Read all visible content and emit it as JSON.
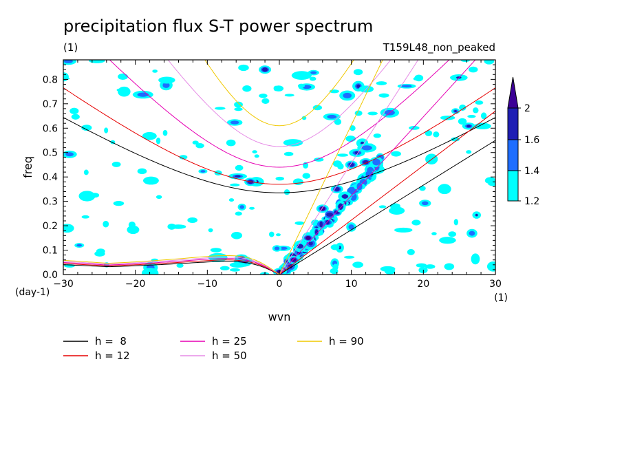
{
  "chart_data": {
    "type": "heatmap",
    "title": "precipitation flux S-T power spectrum",
    "subtitle_left": "(1)",
    "subtitle_right": "T159L48_non_peaked",
    "xlabel": "wvn",
    "ylabel": "freq",
    "x_unit": "(1)",
    "y_unit": "(day-1)",
    "xlim": [
      -30,
      30
    ],
    "ylim": [
      0.0,
      0.88
    ],
    "xticks": [
      -30,
      -20,
      -10,
      0,
      10,
      20,
      30
    ],
    "yticks": [
      0.0,
      0.1,
      0.2,
      0.3,
      0.4,
      0.5,
      0.6,
      0.7,
      0.8
    ],
    "colorbar": {
      "levels": [
        1.2,
        1.4,
        1.6,
        2
      ],
      "labels": [
        "1.2",
        "1.4",
        "1.6",
        "2"
      ],
      "colors": [
        "#00ffff",
        "#1e6eff",
        "#1e1eb4",
        "#3c0096"
      ]
    },
    "grid": false,
    "legend_placement": "bottom-left",
    "dispersion_curves": [
      {
        "label": "h =  8",
        "h": 8,
        "color": "#000000"
      },
      {
        "label": "h = 12",
        "h": 12,
        "color": "#e60000"
      },
      {
        "label": "h = 25",
        "h": 25,
        "color": "#e600b4"
      },
      {
        "label": "h = 50",
        "h": 50,
        "color": "#e68ce6"
      },
      {
        "label": "h = 90",
        "h": 90,
        "color": "#f0c800"
      }
    ],
    "kelvin_waves": [
      {
        "x": [
          0,
          30
        ],
        "y": [
          0,
          0.55
        ],
        "h": 8
      },
      {
        "x": [
          0,
          30
        ],
        "y": [
          0,
          0.67
        ],
        "h": 12
      },
      {
        "x": [
          0,
          30
        ],
        "y": [
          0,
          0.97
        ],
        "h": 25
      },
      {
        "x": [
          0,
          30
        ],
        "y": [
          0,
          1.37
        ],
        "h": 50
      },
      {
        "x": [
          0,
          30
        ],
        "y": [
          0,
          1.84
        ],
        "h": 90
      }
    ],
    "inertia_gravity_minimum": [
      {
        "h": 8,
        "x": 0,
        "y": 0.335
      },
      {
        "h": 12,
        "x": 0,
        "y": 0.37
      },
      {
        "h": 25,
        "x": 0,
        "y": 0.44
      },
      {
        "h": 50,
        "x": 0,
        "y": 0.525
      },
      {
        "h": 90,
        "x": 0,
        "y": 0.61
      }
    ],
    "rossby_at_wvn_minus30": [
      {
        "h": 8,
        "y": 0.045
      },
      {
        "h": 12,
        "y": 0.05
      },
      {
        "h": 25,
        "y": 0.055
      },
      {
        "h": 50,
        "y": 0.06
      },
      {
        "h": 90,
        "y": 0.065
      }
    ],
    "spectral_peaks": [
      {
        "wvn": 0,
        "freq": 0.01,
        "level": 2
      },
      {
        "wvn": 2,
        "freq": 0.06,
        "level": 2
      },
      {
        "wvn": 4,
        "freq": 0.15,
        "level": 2
      },
      {
        "wvn": 6,
        "freq": 0.27,
        "level": 2
      },
      {
        "wvn": 8,
        "freq": 0.35,
        "level": 1.6
      },
      {
        "wvn": 10,
        "freq": 0.45,
        "level": 1.6
      },
      {
        "wvn": 12,
        "freq": 0.46,
        "level": 1.6
      },
      {
        "wvn": -4,
        "freq": 0.38,
        "level": 1.6
      },
      {
        "wvn": -2,
        "freq": 0.84,
        "level": 1.6
      }
    ]
  }
}
